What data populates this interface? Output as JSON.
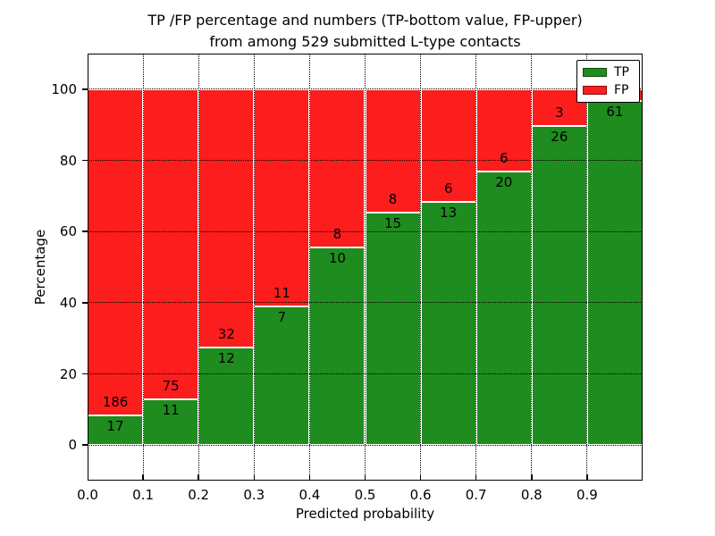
{
  "title": {
    "line1": "TP /FP percentage and numbers (TP-bottom value, FP-upper)",
    "line2": "from among 529 submitted L-type contacts"
  },
  "axes": {
    "xlabel": "Predicted probability",
    "ylabel": "Percentage",
    "x_ticks": [
      "0.0",
      "0.1",
      "0.2",
      "0.3",
      "0.4",
      "0.5",
      "0.6",
      "0.7",
      "0.8",
      "0.9"
    ],
    "x_tick_values": [
      0,
      0.1,
      0.2,
      0.3,
      0.4,
      0.5,
      0.6,
      0.7,
      0.8,
      0.9
    ],
    "y_ticks": [
      "0",
      "20",
      "40",
      "60",
      "80",
      "100"
    ],
    "y_tick_values": [
      0,
      20,
      40,
      60,
      80,
      100
    ],
    "ylim": [
      -10,
      110
    ],
    "xlim": [
      0,
      1
    ],
    "grid": "dotted"
  },
  "legend": {
    "position": "upper-right",
    "items": [
      {
        "label": "TP",
        "color": "#1f8c1f"
      },
      {
        "label": "FP",
        "color": "#fc1d1d"
      }
    ]
  },
  "colors": {
    "tp": "#1f8c1f",
    "fp": "#fc1d1d",
    "bar_edge": "#ffffff",
    "grid": "#000000",
    "background": "#ffffff"
  },
  "chart_data": {
    "type": "bar",
    "stacked": true,
    "title": "TP /FP percentage and numbers (TP-bottom value, FP-upper) from among 529 submitted L-type contacts",
    "xlabel": "Predicted probability",
    "ylabel": "Percentage",
    "total_contacts": 529,
    "legend_entries": [
      "TP",
      "FP"
    ],
    "series_names": [
      "TP",
      "FP"
    ],
    "bars": [
      {
        "x_start": 0.0,
        "x_end": 0.1,
        "tp_count": "17",
        "fp_count": "186",
        "tp_pct": 8.4
      },
      {
        "x_start": 0.1,
        "x_end": 0.2,
        "tp_count": "11",
        "fp_count": "75",
        "tp_pct": 12.8
      },
      {
        "x_start": 0.2,
        "x_end": 0.3,
        "tp_count": "12",
        "fp_count": "32",
        "tp_pct": 27.3
      },
      {
        "x_start": 0.3,
        "x_end": 0.4,
        "tp_count": "7",
        "fp_count": "11",
        "tp_pct": 38.9
      },
      {
        "x_start": 0.4,
        "x_end": 0.5,
        "tp_count": "10",
        "fp_count": "8",
        "tp_pct": 55.6
      },
      {
        "x_start": 0.5,
        "x_end": 0.6,
        "tp_count": "15",
        "fp_count": "8",
        "tp_pct": 65.2
      },
      {
        "x_start": 0.6,
        "x_end": 0.7,
        "tp_count": "13",
        "fp_count": "6",
        "tp_pct": 68.4
      },
      {
        "x_start": 0.7,
        "x_end": 0.8,
        "tp_count": "20",
        "fp_count": "6",
        "tp_pct": 76.9
      },
      {
        "x_start": 0.8,
        "x_end": 0.9,
        "tp_count": "26",
        "fp_count": "3",
        "tp_pct": 89.7
      },
      {
        "x_start": 0.9,
        "x_end": 1.0,
        "tp_count": "61",
        "fp_count": null,
        "tp_pct": 96.8
      }
    ]
  }
}
